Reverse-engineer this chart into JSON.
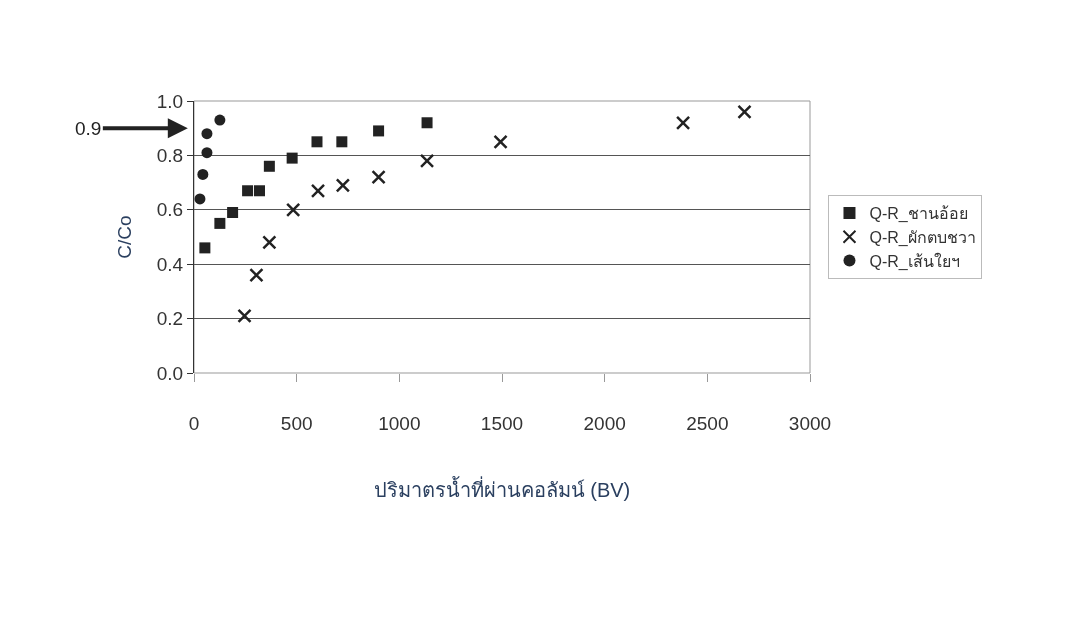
{
  "chart_data": {
    "type": "scatter",
    "xlabel": "ปริมาตรน้ำที่ผ่านคอลัมน์ (BV)",
    "ylabel": "C/Co",
    "xlim": [
      0,
      3000
    ],
    "xticks": [
      0,
      500,
      1000,
      1500,
      2000,
      2500,
      3000
    ],
    "ylim": [
      0,
      1
    ],
    "yticks": [
      {
        "value": 0,
        "label": "0.0"
      },
      0.2,
      0.4,
      0.6,
      0.8,
      {
        "value": 1,
        "label": "1.0"
      }
    ],
    "grid": "y",
    "legend": "right",
    "annotations": [
      "0.9"
    ],
    "series": [
      {
        "name": "Q-R_ชานอ้อย",
        "color": "#222222",
        "marker": "square",
        "x": [
          53,
          126,
          188,
          261,
          319,
          367,
          478,
          599,
          720,
          899,
          1135
        ],
        "values": [
          0.46,
          0.55,
          0.59,
          0.67,
          0.67,
          0.76,
          0.79,
          0.85,
          0.85,
          0.89,
          0.92
        ]
      },
      {
        "name": "Q-R_ผักตบชวา",
        "color": "#222222",
        "marker": "cross",
        "x": [
          246,
          304,
          367,
          483,
          604,
          725,
          899,
          1135,
          1493,
          2382,
          2681
        ],
        "values": [
          0.21,
          0.36,
          0.48,
          0.6,
          0.67,
          0.69,
          0.72,
          0.78,
          0.85,
          0.92,
          0.96
        ]
      },
      {
        "name": "Q-R_เส้นใยฯ",
        "color": "#222222",
        "marker": "circle",
        "x": [
          29,
          43,
          63,
          63,
          126
        ],
        "values": [
          0.64,
          0.73,
          0.81,
          0.88,
          0.93
        ]
      }
    ]
  }
}
